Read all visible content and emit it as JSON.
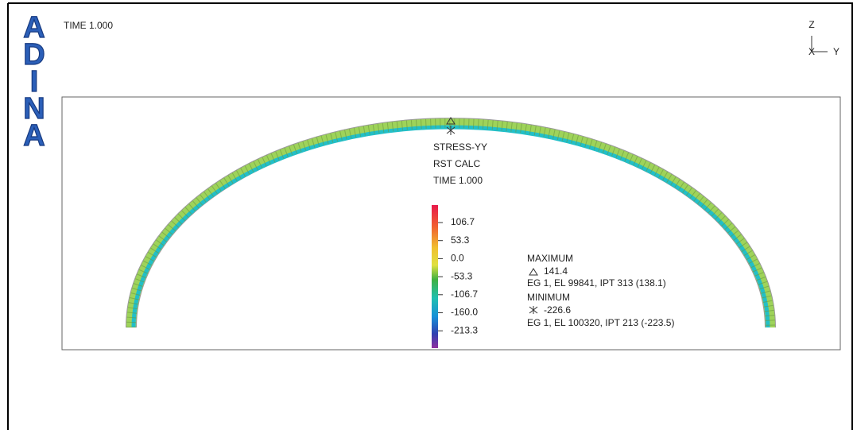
{
  "logo": {
    "letters": [
      "A",
      "D",
      "I",
      "N",
      "A"
    ]
  },
  "time_label": "TIME 1.000",
  "triad": {
    "z": "Z",
    "x": "X",
    "y": "Y"
  },
  "plot": {
    "legend_title": [
      "STRESS-YY",
      "RST CALC",
      "TIME 1.000"
    ],
    "colorbar_ticks": [
      "106.7",
      "53.3",
      "0.0",
      "-53.3",
      "-106.7",
      "-160.0",
      "-213.3"
    ],
    "maximum": {
      "title": "MAXIMUM",
      "value": "141.4",
      "location": "EG 1, EL 99841, IPT 313 (138.1)"
    },
    "minimum": {
      "title": "MINIMUM",
      "value": "-226.6",
      "location": "EG 1, EL 100320, IPT 213 (-223.5)"
    }
  }
}
